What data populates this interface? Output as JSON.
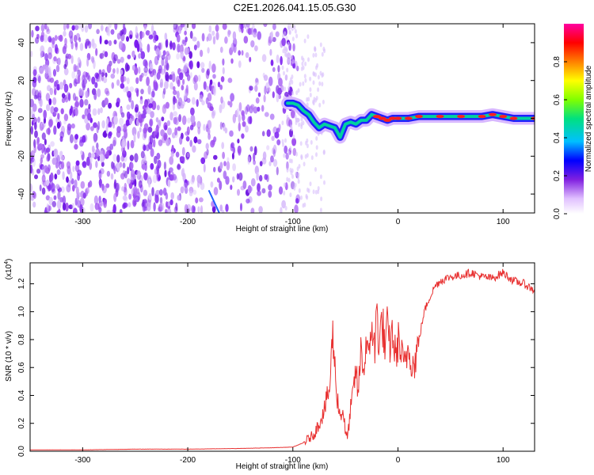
{
  "title": "C2E1.2026.041.15.05.G30",
  "chart_data": [
    {
      "type": "heatmap",
      "title": "C2E1.2026.041.15.05.G30",
      "xlabel": "Height of straight line (km)",
      "ylabel": "Frequency (Hz)",
      "xlim": [
        -350,
        130
      ],
      "ylim": [
        -50,
        50
      ],
      "xticks": [
        -300,
        -200,
        -100,
        0,
        100
      ],
      "yticks": [
        -40,
        -20,
        0,
        20,
        40
      ],
      "colorbar": {
        "label": "Normalized spectral amplitude",
        "range": [
          0.0,
          1.0
        ],
        "ticks": [
          "0.0",
          "0.2",
          "0.4",
          "0.6",
          "0.8"
        ],
        "colors": [
          "#ffffff",
          "#e0c0ff",
          "#8020e0",
          "#0000ff",
          "#00c0ff",
          "#00e080",
          "#80ff00",
          "#ffff00",
          "#ff8000",
          "#ff0000",
          "#ff00a0"
        ]
      },
      "signal_track": {
        "height_km": [
          -105,
          -100,
          -95,
          -90,
          -85,
          -80,
          -75,
          -70,
          -65,
          -60,
          -55,
          -50,
          -45,
          -40,
          -35,
          -30,
          -25,
          -20,
          -15,
          -10,
          -5,
          0,
          10,
          20,
          40,
          60,
          80,
          90,
          100,
          110,
          130
        ],
        "frequency_hz": [
          8,
          8,
          7,
          4,
          2,
          -2,
          -5,
          -3,
          -4,
          -5,
          -10,
          -3,
          -2,
          -3,
          -1,
          -1,
          2,
          1,
          0,
          -1,
          0,
          0,
          0,
          1,
          1,
          1,
          1,
          2,
          1,
          0,
          0
        ]
      }
    },
    {
      "type": "line",
      "title": "",
      "xlabel": "Height of straight line (km)",
      "ylabel": "SNR (10 * v/v)",
      "yscale_label": "(x10",
      "yscale_exp": "4",
      "yscale_close": ")",
      "xlim": [
        -350,
        130
      ],
      "ylim": [
        0.0,
        1.35
      ],
      "xticks": [
        -300,
        -200,
        -100,
        0,
        100
      ],
      "yticks": [
        "0.0",
        "0.2",
        "0.4",
        "0.6",
        "0.8",
        "1.0",
        "1.2"
      ],
      "color": "#e83030",
      "series": [
        {
          "name": "SNR",
          "x": [
            -350,
            -300,
            -250,
            -200,
            -150,
            -120,
            -100,
            -90,
            -80,
            -75,
            -70,
            -65,
            -62,
            -60,
            -58,
            -55,
            -52,
            -50,
            -48,
            -45,
            -42,
            -40,
            -38,
            -35,
            -32,
            -30,
            -28,
            -25,
            -22,
            -20,
            -18,
            -15,
            -12,
            -10,
            -8,
            -5,
            -2,
            0,
            3,
            6,
            10,
            15,
            20,
            25,
            30,
            35,
            40,
            50,
            60,
            70,
            80,
            90,
            100,
            110,
            120,
            130
          ],
          "y": [
            0.01,
            0.01,
            0.015,
            0.015,
            0.02,
            0.025,
            0.03,
            0.06,
            0.12,
            0.2,
            0.3,
            0.45,
            0.85,
            0.6,
            0.4,
            0.25,
            0.3,
            0.12,
            0.1,
            0.3,
            0.45,
            0.6,
            0.4,
            0.75,
            0.55,
            0.85,
            0.6,
            0.95,
            0.7,
            1.05,
            0.75,
            0.95,
            0.7,
            0.9,
            0.75,
            0.85,
            0.65,
            0.8,
            0.7,
            0.6,
            0.75,
            0.6,
            0.8,
            1.0,
            1.1,
            1.18,
            1.22,
            1.25,
            1.26,
            1.28,
            1.25,
            1.24,
            1.28,
            1.22,
            1.2,
            1.15
          ]
        }
      ]
    }
  ]
}
